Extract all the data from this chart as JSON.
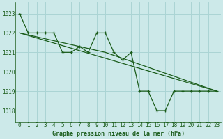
{
  "title": "Graphe pression niveau de la mer (hPa)",
  "background_color": "#cce9e9",
  "grid_color": "#aad4d4",
  "line_color": "#1a5c1a",
  "spine_color": "#1a5c1a",
  "xlim": [
    -0.5,
    23.5
  ],
  "ylim": [
    1017.4,
    1023.6
  ],
  "yticks": [
    1018,
    1019,
    1020,
    1021,
    1022,
    1023
  ],
  "xticks": [
    0,
    1,
    2,
    3,
    4,
    5,
    6,
    7,
    8,
    9,
    10,
    11,
    12,
    13,
    14,
    15,
    16,
    17,
    18,
    19,
    20,
    21,
    22,
    23
  ],
  "series1": [
    1023.0,
    1022.0,
    1022.0,
    1022.0,
    1022.0,
    1021.0,
    1021.0,
    1021.3,
    1021.0,
    1022.0,
    1022.0,
    1021.0,
    1020.6,
    1021.0,
    1019.0,
    1019.0,
    1018.0,
    1018.0,
    1019.0,
    1019.0,
    1019.0,
    1019.0,
    1019.0,
    1019.0
  ],
  "series2_x": [
    0,
    23
  ],
  "series2_y": [
    1022.0,
    1019.0
  ],
  "series3_x": [
    0,
    10,
    23
  ],
  "series3_y": [
    1022.0,
    1021.0,
    1019.0
  ],
  "title_fontsize": 6.0,
  "tick_fontsize": 5.5
}
